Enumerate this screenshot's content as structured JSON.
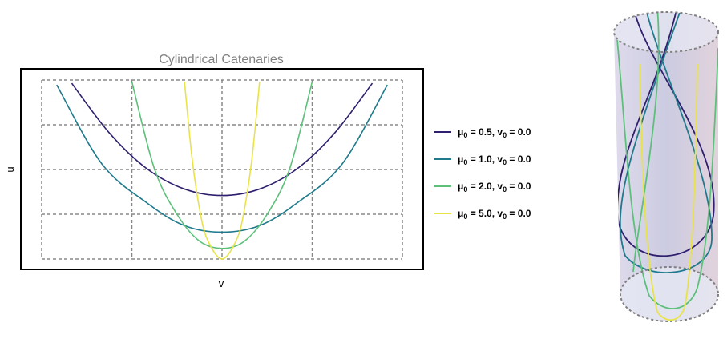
{
  "chart_data": {
    "type": "line",
    "title": "Cylindrical Catenaries",
    "xlabel": "v",
    "ylabel": "u",
    "grid": true,
    "legend_position": "right",
    "x_range": [
      -1.2,
      1.2
    ],
    "y_range": [
      0,
      2.2
    ],
    "series": [
      {
        "mu0": "0.5",
        "v0": "0.0",
        "color": "#2f1f6e",
        "x": [
          -1.0,
          -0.75,
          -0.5,
          -0.25,
          0.0,
          0.25,
          0.5,
          0.75,
          1.0
        ],
        "y": [
          2.16,
          1.55,
          1.11,
          0.86,
          0.78,
          0.86,
          1.11,
          1.55,
          2.16
        ]
      },
      {
        "mu0": "1.0",
        "v0": "0.0",
        "color": "#1f7a8c",
        "x": [
          -1.1,
          -0.8,
          -0.5,
          -0.25,
          0.0,
          0.25,
          0.5,
          0.8,
          1.1
        ],
        "y": [
          2.14,
          1.17,
          0.69,
          0.41,
          0.33,
          0.41,
          0.69,
          1.17,
          2.14
        ]
      },
      {
        "mu0": "2.0",
        "v0": "0.0",
        "color": "#5cc07a",
        "x": [
          -0.6,
          -0.45,
          -0.3,
          -0.15,
          0.0,
          0.15,
          0.3,
          0.45,
          0.6
        ],
        "y": [
          2.18,
          1.11,
          0.55,
          0.22,
          0.13,
          0.22,
          0.55,
          1.11,
          2.18
        ]
      },
      {
        "mu0": "5.0",
        "v0": "0.0",
        "color": "#e9e34a",
        "x": [
          -0.25,
          -0.2,
          -0.15,
          -0.1,
          0.0,
          0.1,
          0.15,
          0.2,
          0.25
        ],
        "y": [
          2.18,
          1.25,
          0.62,
          0.25,
          0.0,
          0.25,
          0.62,
          1.25,
          2.18
        ]
      }
    ]
  },
  "legend": {
    "prefix_mu": "μ",
    "prefix_v": "v",
    "sub": "0"
  },
  "cylinder": {
    "fill_color": "#c4c1dc",
    "rim_color": "#808080"
  }
}
